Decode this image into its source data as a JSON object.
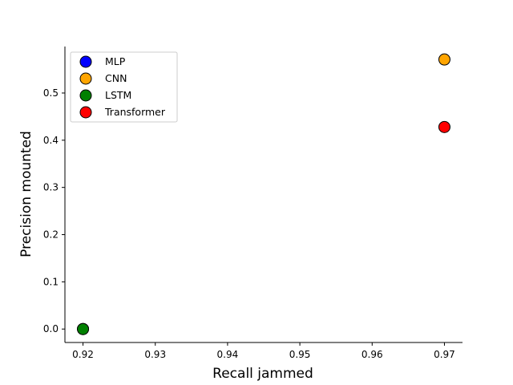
{
  "chart_data": {
    "type": "scatter",
    "title": "",
    "xlabel": "Recall jammed",
    "ylabel": "Precision mounted",
    "xlim": [
      0.9175,
      0.9725
    ],
    "ylim": [
      -0.0285,
      0.5985
    ],
    "xticks": [
      0.92,
      0.93,
      0.94,
      0.95,
      0.96,
      0.97
    ],
    "xtick_labels": [
      "0.92",
      "0.93",
      "0.94",
      "0.95",
      "0.96",
      "0.97"
    ],
    "yticks": [
      0.0,
      0.1,
      0.2,
      0.3,
      0.4,
      0.5
    ],
    "ytick_labels": [
      "0.0",
      "0.1",
      "0.2",
      "0.3",
      "0.4",
      "0.5"
    ],
    "grid": false,
    "legend_position": "upper-left",
    "series": [
      {
        "name": "MLP",
        "color": "#0000ff",
        "points": [
          [
            0.92,
            0.0
          ]
        ]
      },
      {
        "name": "CNN",
        "color": "#ffa500",
        "points": [
          [
            0.97,
            0.571
          ]
        ]
      },
      {
        "name": "LSTM",
        "color": "#008000",
        "points": [
          [
            0.92,
            0.0
          ]
        ]
      },
      {
        "name": "Transformer",
        "color": "#ff0000",
        "points": [
          [
            0.97,
            0.428
          ]
        ]
      }
    ]
  }
}
